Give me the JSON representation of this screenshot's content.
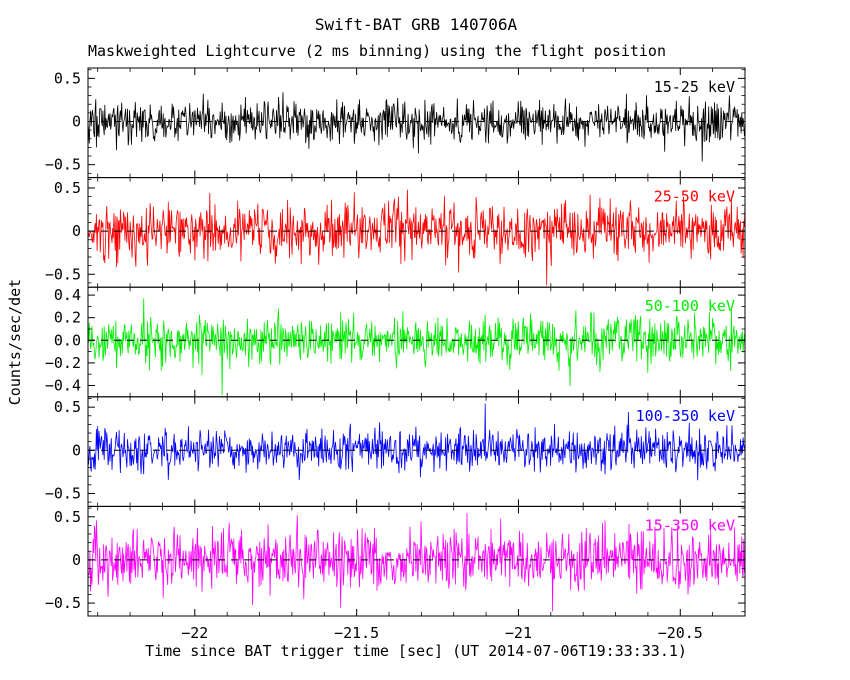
{
  "chart_data": {
    "type": "line",
    "title": "Swift-BAT GRB 140706A",
    "subtitle": "Maskweighted Lightcurve (2 ms binning) using the flight position",
    "xlabel": "Time since BAT trigger time [sec] (UT 2014-07-06T19:33:33.1)",
    "ylabel": "Counts/sec/det",
    "x_range": [
      -22.33,
      -20.3
    ],
    "x_major_ticks": [
      {
        "value": -22,
        "label": "−22"
      },
      {
        "value": -21.5,
        "label": "−21.5"
      },
      {
        "value": -21,
        "label": "−21"
      },
      {
        "value": -20.5,
        "label": "−20.5"
      }
    ],
    "x_minor_step": 0.1,
    "y_minor_step": 0.1,
    "n_points": 1015,
    "bin_ms": 2,
    "grid": false,
    "zero_line_style": "dashed",
    "panels": [
      {
        "label": "15-25 keV",
        "color": "#000000",
        "ylim": [
          -0.65,
          0.62
        ],
        "yticks": [
          {
            "value": 0.5,
            "label": "0.5"
          },
          {
            "value": 0,
            "label": "0"
          },
          {
            "value": -0.5,
            "label": "−0.5"
          }
        ],
        "noise_std_estimate": 0.12,
        "seed": 1
      },
      {
        "label": "25-50 keV",
        "color": "#ff0000",
        "ylim": [
          -0.65,
          0.62
        ],
        "yticks": [
          {
            "value": 0.5,
            "label": "0.5"
          },
          {
            "value": 0,
            "label": "0"
          },
          {
            "value": -0.5,
            "label": "−0.5"
          }
        ],
        "noise_std_estimate": 0.15,
        "seed": 2
      },
      {
        "label": "50-100 keV",
        "color": "#00ee00",
        "ylim": [
          -0.5,
          0.47
        ],
        "yticks": [
          {
            "value": 0.4,
            "label": "0.4"
          },
          {
            "value": 0.2,
            "label": "0.2"
          },
          {
            "value": 0,
            "label": "0.0"
          },
          {
            "value": -0.2,
            "label": "−0.2"
          },
          {
            "value": -0.4,
            "label": "−0.4"
          }
        ],
        "noise_std_estimate": 0.1,
        "seed": 3
      },
      {
        "label": "100-350 keV",
        "color": "#0000ff",
        "ylim": [
          -0.65,
          0.62
        ],
        "yticks": [
          {
            "value": 0.5,
            "label": "0.5"
          },
          {
            "value": 0,
            "label": "0"
          },
          {
            "value": -0.5,
            "label": "−0.5"
          }
        ],
        "noise_std_estimate": 0.12,
        "seed": 4
      },
      {
        "label": "15-350 keV",
        "color": "#ff00ff",
        "ylim": [
          -0.65,
          0.62
        ],
        "yticks": [
          {
            "value": 0.5,
            "label": "0.5"
          },
          {
            "value": 0,
            "label": "0"
          },
          {
            "value": -0.5,
            "label": "−0.5"
          }
        ],
        "noise_std_estimate": 0.17,
        "seed": 5
      }
    ]
  }
}
